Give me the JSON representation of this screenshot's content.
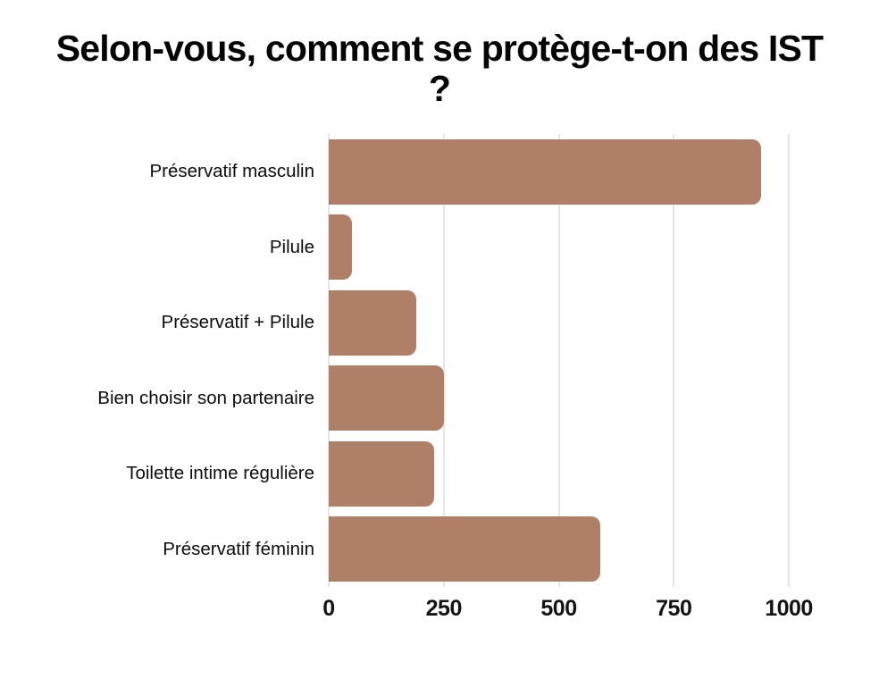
{
  "chart_data": {
    "type": "bar",
    "orientation": "horizontal",
    "title": "Selon-vous, comment se protège-t-on des IST ?",
    "categories": [
      "Préservatif masculin",
      "Pilule",
      "Préservatif + Pilule",
      "Bien choisir son partenaire",
      "Toilette intime régulière",
      "Préservatif féminin"
    ],
    "values": [
      940,
      50,
      190,
      250,
      230,
      590
    ],
    "xlabel": "",
    "ylabel": "",
    "xlim": [
      0,
      1000
    ],
    "xticks": [
      0,
      250,
      500,
      750,
      1000
    ],
    "grid": true,
    "legend": false,
    "colors": {
      "bar": "#af7f68",
      "gridline": "#e6e6e6",
      "title_text": "#050505",
      "label_text": "#0d0d0d",
      "background": "#ffffff"
    }
  }
}
